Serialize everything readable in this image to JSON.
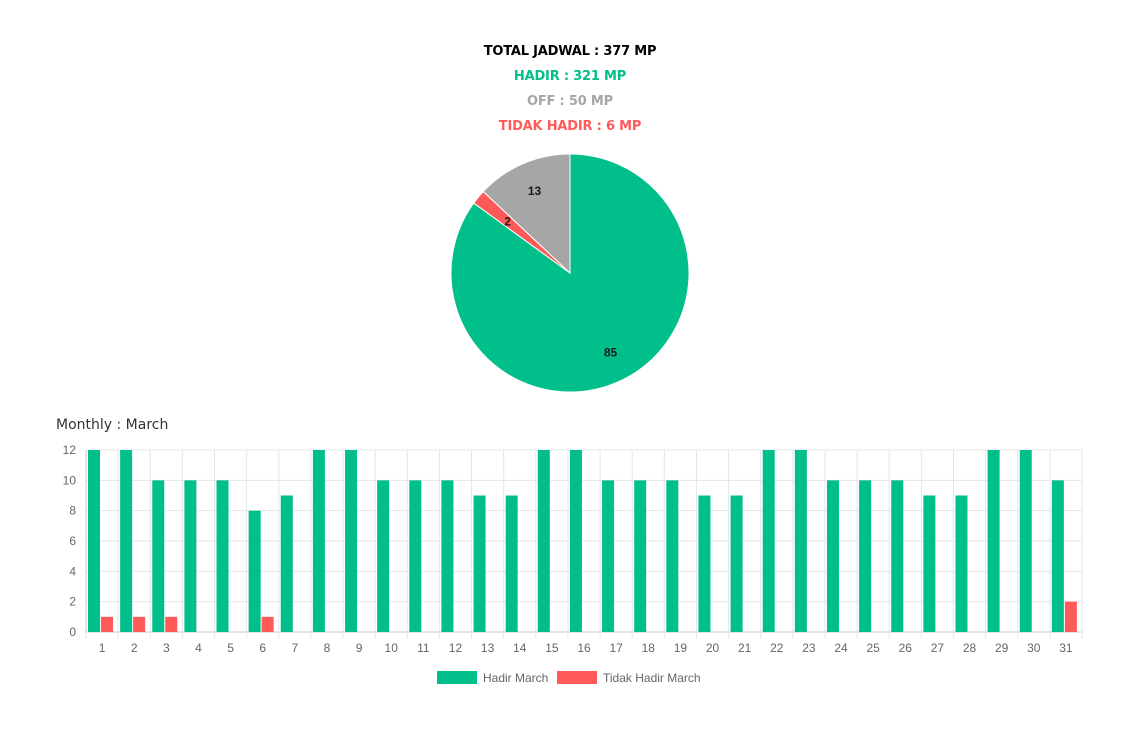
{
  "summary": {
    "total_label": "TOTAL JADWAL : 377 MP",
    "hadir_label": "HADIR : 321 MP",
    "off_label": "OFF : 50 MP",
    "tidak_hadir_label": "TIDAK HADIR : 6 MP"
  },
  "monthly_title": "Monthly : March",
  "colors": {
    "hadir": "#00bf8a",
    "off": "#a6a6a6",
    "tidak_hadir": "#ff5a5a",
    "total": "#000000"
  },
  "chart_data": [
    {
      "type": "pie",
      "slices": [
        {
          "label": "85",
          "value": 85,
          "color": "#00bf8a"
        },
        {
          "label": "2",
          "value": 2,
          "color": "#ff5a5a"
        },
        {
          "label": "13",
          "value": 13,
          "color": "#a6a6a6"
        }
      ]
    },
    {
      "type": "bar",
      "categories": [
        "1",
        "2",
        "3",
        "4",
        "5",
        "6",
        "7",
        "8",
        "9",
        "10",
        "11",
        "12",
        "13",
        "14",
        "15",
        "16",
        "17",
        "18",
        "19",
        "20",
        "21",
        "22",
        "23",
        "24",
        "25",
        "26",
        "27",
        "28",
        "29",
        "30",
        "31"
      ],
      "series": [
        {
          "name": "Hadir March",
          "color": "#00bf8a",
          "values": [
            12,
            12,
            10,
            10,
            10,
            8,
            9,
            12,
            12,
            10,
            10,
            10,
            9,
            9,
            12,
            12,
            10,
            10,
            10,
            9,
            9,
            12,
            12,
            10,
            10,
            10,
            9,
            9,
            12,
            12,
            10
          ]
        },
        {
          "name": "Tidak Hadir March",
          "color": "#ff5a5a",
          "values": [
            1,
            1,
            1,
            0,
            0,
            1,
            0,
            0,
            0,
            0,
            0,
            0,
            0,
            0,
            0,
            0,
            0,
            0,
            0,
            0,
            0,
            0,
            0,
            0,
            0,
            0,
            0,
            0,
            0,
            0,
            2
          ]
        }
      ],
      "yticks": [
        "0",
        "2",
        "4",
        "6",
        "8",
        "10",
        "12"
      ],
      "ylim": [
        0,
        12
      ],
      "grid": true,
      "legend": "bottom"
    }
  ]
}
